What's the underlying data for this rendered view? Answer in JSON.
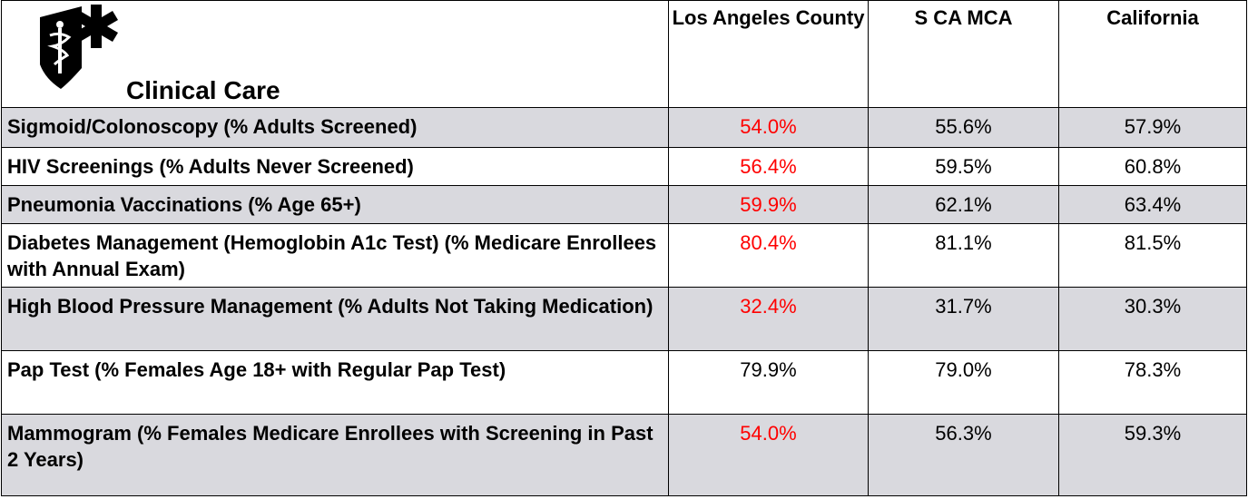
{
  "table": {
    "title": "Clinical Care",
    "columns": [
      "Los Angeles County",
      "S CA MCA",
      "California"
    ],
    "highlight_color": "#ff0000",
    "stripe_color": "#d9d9de",
    "rows": [
      {
        "label": "Sigmoid/Colonoscopy (% Adults Screened)",
        "values": [
          "54.0%",
          "55.6%",
          "57.9%"
        ],
        "highlight": [
          true,
          false,
          false
        ]
      },
      {
        "label": "HIV Screenings (% Adults Never Screened)",
        "values": [
          "56.4%",
          "59.5%",
          "60.8%"
        ],
        "highlight": [
          true,
          false,
          false
        ]
      },
      {
        "label": "Pneumonia Vaccinations (% Age 65+)",
        "values": [
          "59.9%",
          "62.1%",
          "63.4%"
        ],
        "highlight": [
          true,
          false,
          false
        ]
      },
      {
        "label": "Diabetes Management (Hemoglobin A1c Test) (% Medicare Enrollees with Annual Exam)",
        "values": [
          "80.4%",
          "81.1%",
          "81.5%"
        ],
        "highlight": [
          true,
          false,
          false
        ]
      },
      {
        "label": "High Blood Pressure Management (% Adults Not Taking Medication)",
        "values": [
          "32.4%",
          "31.7%",
          "30.3%"
        ],
        "highlight": [
          true,
          false,
          false
        ]
      },
      {
        "label": "Pap Test (% Females Age 18+ with Regular Pap Test)",
        "values": [
          "79.9%",
          "79.0%",
          "78.3%"
        ],
        "highlight": [
          false,
          false,
          false
        ]
      },
      {
        "label": "Mammogram (% Females Medicare Enrollees with Screening in Past 2 Years)",
        "values": [
          "54.0%",
          "56.3%",
          "59.3%"
        ],
        "highlight": [
          true,
          false,
          false
        ]
      }
    ]
  }
}
